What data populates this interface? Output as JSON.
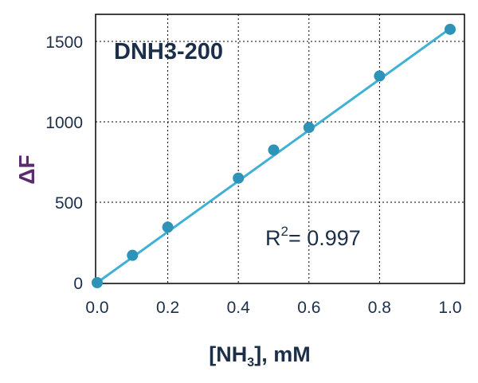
{
  "chart_data": {
    "type": "scatter",
    "title": "DNH3-200",
    "xlabel": "[NH3], mM",
    "ylabel": "ΔF",
    "xlim": [
      0,
      1.0
    ],
    "ylim": [
      0,
      1600
    ],
    "x_ticks": [
      "0.0",
      "0.2",
      "0.4",
      "0.6",
      "0.8",
      "1.0"
    ],
    "y_ticks": [
      "0",
      "500",
      "1000",
      "1500"
    ],
    "grid": true,
    "series": [
      {
        "x": [
          0.0,
          0.1,
          0.2,
          0.4,
          0.5,
          0.6,
          0.8,
          1.0
        ],
        "y": [
          0,
          170,
          345,
          650,
          825,
          965,
          1285,
          1575
        ]
      }
    ],
    "fit": {
      "type": "linear",
      "x": [
        0.0,
        1.0
      ],
      "y": [
        0,
        1580
      ]
    },
    "annotation": {
      "label": "R",
      "sup": "2",
      "value": "= 0.997"
    },
    "colors": {
      "series": "#2e93b8",
      "fit": "#3fb0d6",
      "text": "#1c2f4a",
      "y_title": "#5b2d6e"
    }
  }
}
